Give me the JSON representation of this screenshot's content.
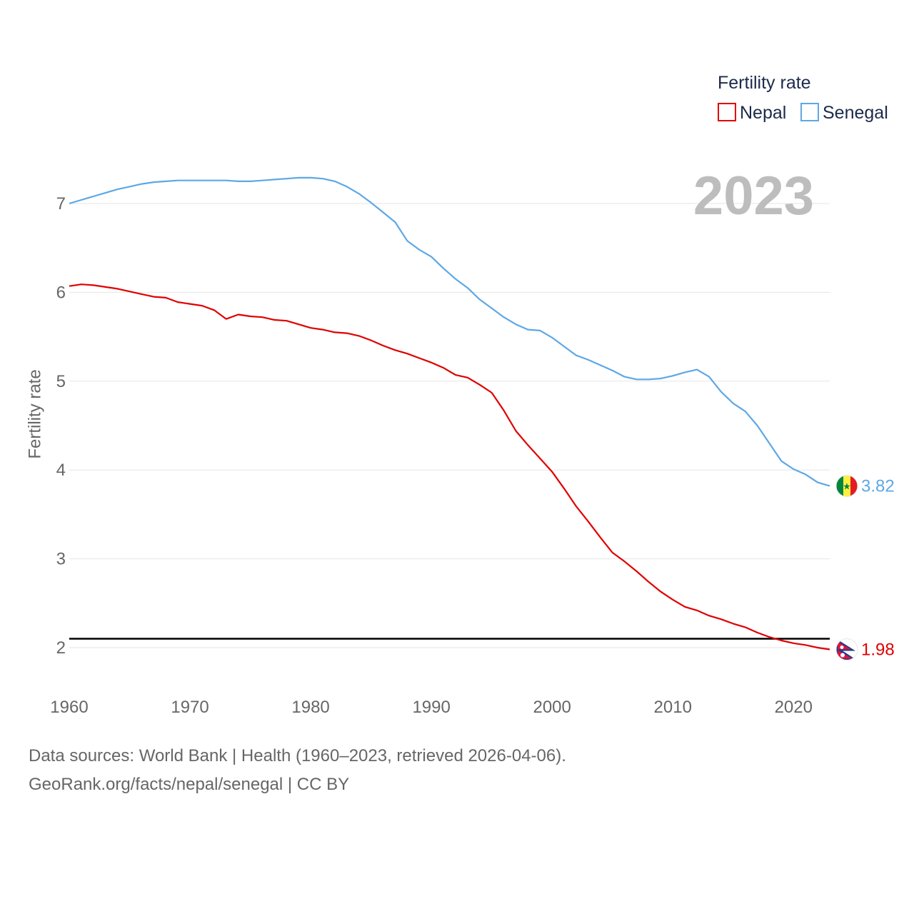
{
  "chart_data": {
    "type": "line",
    "legend": {
      "title": "Fertility rate",
      "position": "top-right"
    },
    "ylabel": "Fertility rate",
    "xlabel": "",
    "year_label": "2023",
    "xlim": [
      1960,
      2023
    ],
    "ylim": [
      1.6,
      7.6
    ],
    "x_ticks": [
      1960,
      1970,
      1980,
      1990,
      2000,
      2010,
      2020
    ],
    "x_tick_labels": [
      "1960",
      "1970",
      "1980",
      "1990",
      "2000",
      "2010",
      "2020"
    ],
    "y_ticks": [
      2,
      3,
      4,
      5,
      6,
      7
    ],
    "y_tick_labels": [
      "2",
      "3",
      "4",
      "5",
      "6",
      "7"
    ],
    "reference_line": {
      "value": 2.1,
      "color": "#000000"
    },
    "x": [
      1960,
      1961,
      1962,
      1963,
      1964,
      1965,
      1966,
      1967,
      1968,
      1969,
      1970,
      1971,
      1972,
      1973,
      1974,
      1975,
      1976,
      1977,
      1978,
      1979,
      1980,
      1981,
      1982,
      1983,
      1984,
      1985,
      1986,
      1987,
      1988,
      1989,
      1990,
      1991,
      1992,
      1993,
      1994,
      1995,
      1996,
      1997,
      1998,
      1999,
      2000,
      2001,
      2002,
      2003,
      2004,
      2005,
      2006,
      2007,
      2008,
      2009,
      2010,
      2011,
      2012,
      2013,
      2014,
      2015,
      2016,
      2017,
      2018,
      2019,
      2020,
      2021,
      2022,
      2023
    ],
    "series": [
      {
        "name": "Nepal",
        "color": "#e00000",
        "end_label": "1.98",
        "flag": "nepal-flag",
        "values": [
          6.07,
          6.09,
          6.08,
          6.06,
          6.04,
          6.01,
          5.98,
          5.95,
          5.94,
          5.89,
          5.87,
          5.85,
          5.8,
          5.7,
          5.75,
          5.73,
          5.72,
          5.69,
          5.68,
          5.64,
          5.6,
          5.58,
          5.55,
          5.54,
          5.51,
          5.46,
          5.4,
          5.35,
          5.31,
          5.26,
          5.21,
          5.15,
          5.07,
          5.04,
          4.96,
          4.87,
          4.67,
          4.44,
          4.28,
          4.13,
          3.98,
          3.79,
          3.59,
          3.42,
          3.24,
          3.07,
          2.97,
          2.86,
          2.74,
          2.63,
          2.54,
          2.46,
          2.42,
          2.36,
          2.32,
          2.27,
          2.23,
          2.17,
          2.12,
          2.08,
          2.05,
          2.03,
          2.0,
          1.98
        ]
      },
      {
        "name": "Senegal",
        "color": "#5da8e6",
        "end_label": "3.82",
        "flag": "senegal-flag",
        "values": [
          7.0,
          7.04,
          7.08,
          7.12,
          7.16,
          7.19,
          7.22,
          7.24,
          7.25,
          7.26,
          7.26,
          7.26,
          7.26,
          7.26,
          7.25,
          7.25,
          7.26,
          7.27,
          7.28,
          7.29,
          7.29,
          7.28,
          7.25,
          7.19,
          7.11,
          7.01,
          6.9,
          6.79,
          6.58,
          6.48,
          6.4,
          6.27,
          6.15,
          6.05,
          5.92,
          5.82,
          5.72,
          5.64,
          5.58,
          5.57,
          5.49,
          5.39,
          5.29,
          5.24,
          5.18,
          5.12,
          5.05,
          5.02,
          5.02,
          5.03,
          5.06,
          5.1,
          5.13,
          5.05,
          4.88,
          4.75,
          4.66,
          4.5,
          4.3,
          4.1,
          4.01,
          3.95,
          3.86,
          3.82
        ]
      }
    ]
  },
  "footer": {
    "line1": "Data sources: World Bank | Health (1960–2023, retrieved 2026-04-06).",
    "line2": "GeoRank.org/facts/nepal/senegal | CC BY"
  }
}
